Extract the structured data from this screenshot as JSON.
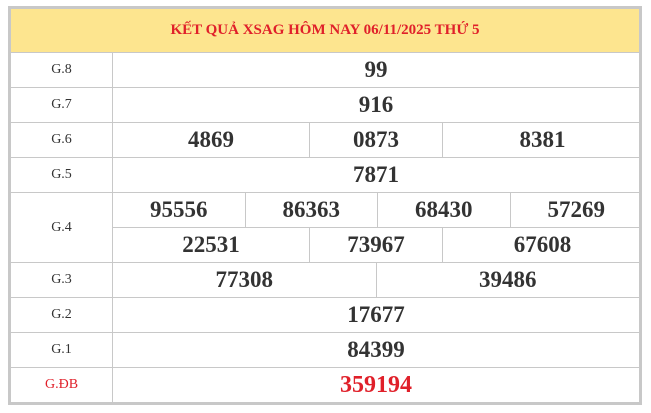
{
  "title": "KẾT QUẢ XSAG HÔM NAY 06/11/2025 THỨ 5",
  "prizes": [
    {
      "label": "G.8",
      "lines": [
        [
          "99"
        ]
      ]
    },
    {
      "label": "G.7",
      "lines": [
        [
          "916"
        ]
      ]
    },
    {
      "label": "G.6",
      "lines": [
        [
          "4869",
          "0873",
          "8381"
        ]
      ]
    },
    {
      "label": "G.5",
      "lines": [
        [
          "7871"
        ]
      ]
    },
    {
      "label": "G.4",
      "lines": [
        [
          "95556",
          "86363",
          "68430",
          "57269"
        ],
        [
          "22531",
          "73967",
          "67608"
        ]
      ]
    },
    {
      "label": "G.3",
      "lines": [
        [
          "77308",
          "39486"
        ]
      ]
    },
    {
      "label": "G.2",
      "lines": [
        [
          "17677"
        ]
      ]
    },
    {
      "label": "G.1",
      "lines": [
        [
          "84399"
        ]
      ]
    },
    {
      "label": "G.ĐB",
      "lines": [
        [
          "359194"
        ]
      ],
      "special": true
    }
  ],
  "colors": {
    "header_bg": "#fde58f",
    "accent": "#e0202a",
    "border": "#c8c8c8"
  }
}
